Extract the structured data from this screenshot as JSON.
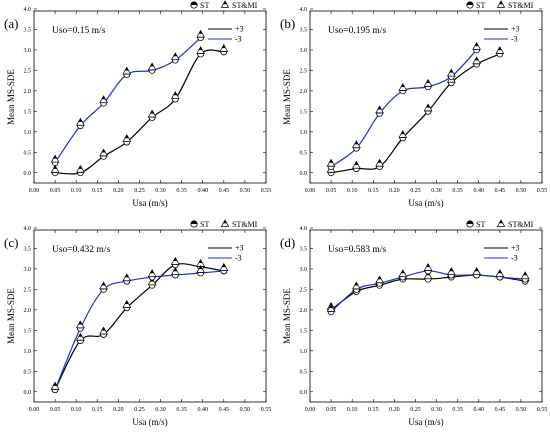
{
  "chart_data": [
    {
      "type": "line",
      "panel": "(a)",
      "annotation": "Uso=0.15 m/s",
      "xlabel": "Usa (m/s)",
      "ylabel": "Mean MS-SDE",
      "xlim": [
        0.0,
        0.55
      ],
      "ylim": [
        -0.25,
        3.95
      ],
      "xticks": [
        "0.00",
        "0.05",
        "0.10",
        "0.15",
        "0.20",
        "0.25",
        "0.30",
        "0.35",
        "0.40",
        "0.45",
        "0.50",
        "0.55"
      ],
      "yticks": [
        "0.0",
        "0.5",
        "1.0",
        "1.5",
        "2.0",
        "2.5",
        "3.0",
        "3.5",
        "4.0"
      ],
      "marker_legend": [
        {
          "label": "ST",
          "marker": "half-circle"
        },
        {
          "label": "ST&MI",
          "marker": "triangle"
        }
      ],
      "series": [
        {
          "name": "+3",
          "color": "#000000",
          "st": {
            "x": [
              0.05,
              0.11,
              0.165,
              0.22,
              0.28,
              0.335,
              0.395,
              0.45
            ],
            "y": [
              0.0,
              0.0,
              0.4,
              0.75,
              1.35,
              1.8,
              2.9,
              2.95
            ]
          },
          "stmi": {
            "x": [
              0.05,
              0.11,
              0.165,
              0.22,
              0.28,
              0.335,
              0.395,
              0.45
            ],
            "y": [
              0.0,
              0.0,
              0.4,
              0.75,
              1.35,
              1.8,
              2.9,
              2.95
            ]
          }
        },
        {
          "name": "-3",
          "color": "#1f2fd6",
          "st": {
            "x": [
              0.05,
              0.11,
              0.165,
              0.22,
              0.28,
              0.335,
              0.395
            ],
            "y": [
              0.25,
              1.15,
              1.7,
              2.4,
              2.5,
              2.75,
              3.3
            ]
          },
          "stmi": {
            "x": [
              0.05,
              0.11,
              0.165,
              0.22,
              0.28,
              0.335,
              0.395
            ],
            "y": [
              0.25,
              1.15,
              1.7,
              2.4,
              2.5,
              2.75,
              3.3
            ]
          }
        }
      ]
    },
    {
      "type": "line",
      "panel": "(b)",
      "annotation": "Uso=0.195 m/s",
      "xlabel": "Usa (m/s)",
      "ylabel": "Mean MS-SDE",
      "xlim": [
        0.0,
        0.55
      ],
      "ylim": [
        -0.25,
        3.95
      ],
      "xticks": [
        "0.00",
        "0.05",
        "0.10",
        "0.15",
        "0.20",
        "0.25",
        "0.30",
        "0.35",
        "0.40",
        "0.45",
        "0.50",
        "0.55"
      ],
      "yticks": [
        "0.0",
        "0.5",
        "1.0",
        "1.5",
        "2.0",
        "2.5",
        "3.0",
        "3.5",
        "4.0"
      ],
      "marker_legend": [
        {
          "label": "ST",
          "marker": "half-circle"
        },
        {
          "label": "ST&MI",
          "marker": "triangle"
        }
      ],
      "series": [
        {
          "name": "+3",
          "color": "#000000",
          "st": {
            "x": [
              0.05,
              0.11,
              0.165,
              0.22,
              0.28,
              0.335,
              0.395,
              0.45
            ],
            "y": [
              0.0,
              0.1,
              0.15,
              0.85,
              1.5,
              2.2,
              2.65,
              2.9
            ]
          },
          "stmi": {
            "x": [
              0.05,
              0.11,
              0.165,
              0.22,
              0.28,
              0.335,
              0.395,
              0.45
            ],
            "y": [
              0.0,
              0.1,
              0.15,
              0.85,
              1.5,
              2.2,
              2.65,
              2.9
            ]
          }
        },
        {
          "name": "-3",
          "color": "#1f2fd6",
          "st": {
            "x": [
              0.05,
              0.11,
              0.165,
              0.22,
              0.28,
              0.335,
              0.395
            ],
            "y": [
              0.15,
              0.6,
              1.45,
              2.0,
              2.1,
              2.35,
              3.0
            ]
          },
          "stmi": {
            "x": [
              0.05,
              0.11,
              0.165,
              0.22,
              0.28,
              0.335,
              0.395
            ],
            "y": [
              0.15,
              0.6,
              1.45,
              2.0,
              2.1,
              2.35,
              3.0
            ]
          }
        }
      ]
    },
    {
      "type": "line",
      "panel": "(c)",
      "annotation": "Uso=0.432 m/s",
      "xlabel": "Usa (m/s)",
      "ylabel": "Mean MS-SDE",
      "xlim": [
        0.0,
        0.55
      ],
      "ylim": [
        -0.25,
        3.95
      ],
      "xticks": [
        "0.00",
        "0.05",
        "0.10",
        "0.15",
        "0.20",
        "0.25",
        "0.30",
        "0.35",
        "0.40",
        "0.45",
        "0.50",
        "0.55"
      ],
      "yticks": [
        "0.0",
        "0.5",
        "1.0",
        "1.5",
        "2.0",
        "2.5",
        "3.0",
        "3.5",
        "4.0"
      ],
      "marker_legend": [
        {
          "label": "ST",
          "marker": "half-circle"
        },
        {
          "label": "ST&MI",
          "marker": "triangle"
        }
      ],
      "series": [
        {
          "name": "+3",
          "color": "#000000",
          "st": {
            "x": [
              0.05,
              0.11,
              0.165,
              0.22,
              0.28,
              0.335,
              0.395,
              0.45
            ],
            "y": [
              0.05,
              1.25,
              1.4,
              2.05,
              2.6,
              3.1,
              3.05,
              2.95
            ]
          },
          "stmi": {
            "x": [
              0.05,
              0.11,
              0.165,
              0.22,
              0.28,
              0.335,
              0.395,
              0.45
            ],
            "y": [
              0.05,
              1.25,
              1.4,
              2.05,
              2.6,
              3.1,
              3.05,
              2.95
            ]
          }
        },
        {
          "name": "-3",
          "color": "#1f2fd6",
          "st": {
            "x": [
              0.05,
              0.11,
              0.165,
              0.22,
              0.28,
              0.335,
              0.395,
              0.45
            ],
            "y": [
              0.05,
              1.55,
              2.5,
              2.7,
              2.8,
              2.85,
              2.9,
              2.95
            ]
          },
          "stmi": {
            "x": [
              0.05,
              0.11,
              0.165,
              0.22,
              0.28,
              0.335,
              0.395,
              0.45
            ],
            "y": [
              0.05,
              1.55,
              2.5,
              2.7,
              2.8,
              2.85,
              2.9,
              2.95
            ]
          }
        }
      ]
    },
    {
      "type": "line",
      "panel": "(d)",
      "annotation": "Uso=0.583 m/s",
      "xlabel": "Usa (m/s)",
      "ylabel": "Mean MS-SDE",
      "xlim": [
        0.0,
        0.55
      ],
      "ylim": [
        -0.25,
        3.95
      ],
      "xticks": [
        "0.00",
        "0.05",
        "0.10",
        "0.15",
        "0.20",
        "0.25",
        "0.30",
        "0.35",
        "0.40",
        "0.45",
        "0.50",
        "0.55"
      ],
      "yticks": [
        "0.0",
        "0.5",
        "1.0",
        "1.5",
        "2.0",
        "2.5",
        "3.0",
        "3.5",
        "4.0"
      ],
      "marker_legend": [
        {
          "label": "ST",
          "marker": "half-circle"
        },
        {
          "label": "ST&MI",
          "marker": "triangle"
        }
      ],
      "series": [
        {
          "name": "+3",
          "color": "#000000",
          "st": {
            "x": [
              0.05,
              0.11,
              0.165,
              0.22,
              0.28,
              0.335,
              0.395,
              0.45,
              0.51
            ],
            "y": [
              2.0,
              2.45,
              2.6,
              2.75,
              2.75,
              2.8,
              2.85,
              2.8,
              2.7
            ]
          },
          "stmi": {
            "x": [
              0.05,
              0.11,
              0.165,
              0.22,
              0.28,
              0.335,
              0.395,
              0.45,
              0.51
            ],
            "y": [
              2.0,
              2.45,
              2.6,
              2.75,
              2.75,
              2.8,
              2.85,
              2.8,
              2.7
            ]
          }
        },
        {
          "name": "-3",
          "color": "#1f2fd6",
          "st": {
            "x": [
              0.05,
              0.11,
              0.165,
              0.22,
              0.28,
              0.335,
              0.395,
              0.45,
              0.51
            ],
            "y": [
              1.95,
              2.5,
              2.65,
              2.8,
              2.95,
              2.85,
              2.85,
              2.8,
              2.75
            ]
          },
          "stmi": {
            "x": [
              0.05,
              0.11,
              0.165,
              0.22,
              0.28,
              0.335,
              0.395,
              0.45,
              0.51
            ],
            "y": [
              1.95,
              2.5,
              2.65,
              2.8,
              2.95,
              2.85,
              2.85,
              2.8,
              2.75
            ]
          }
        }
      ]
    }
  ]
}
